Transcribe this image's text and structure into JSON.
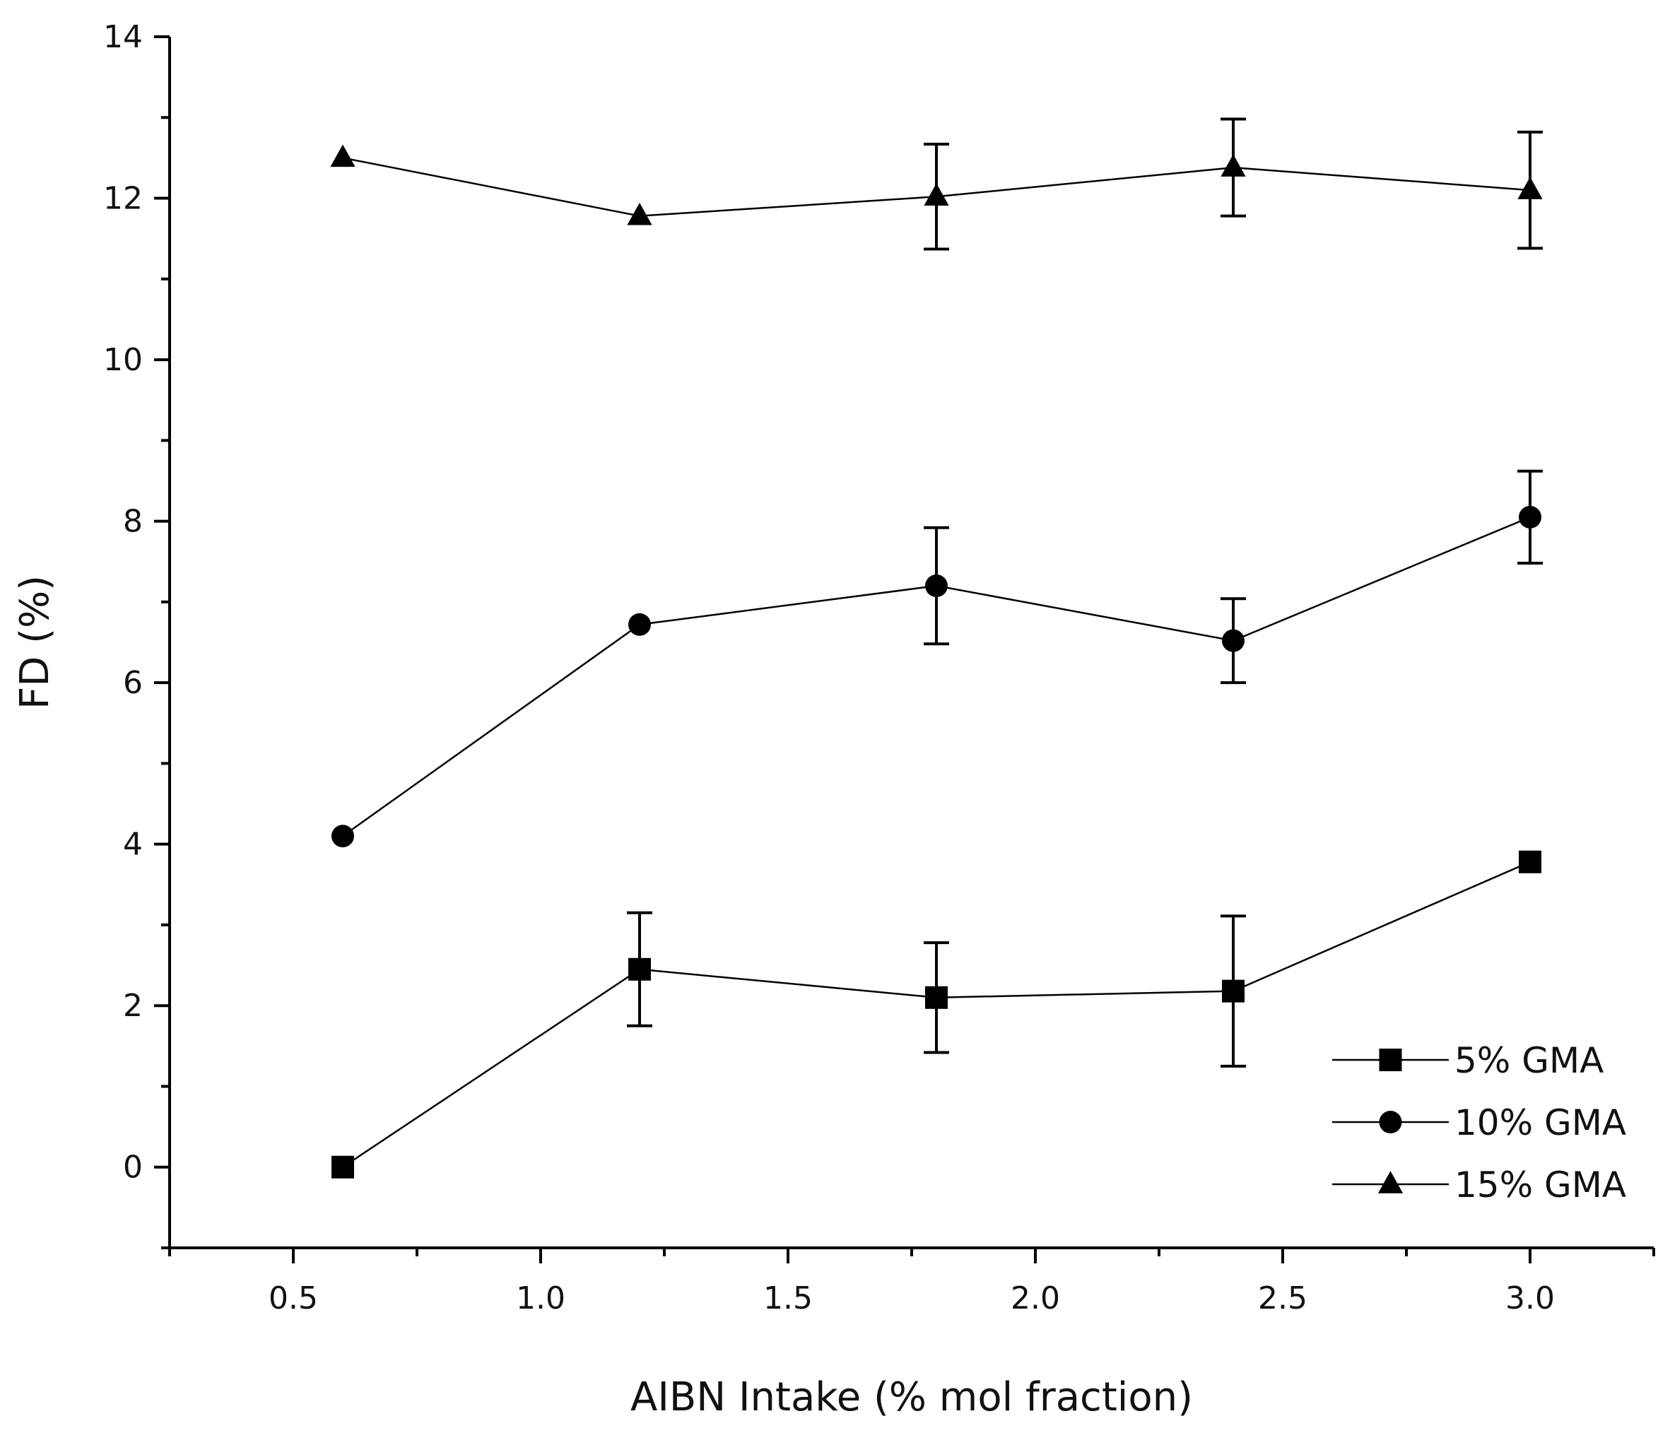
{
  "chart_data": {
    "type": "line",
    "title": "",
    "xlabel": "AIBN Intake (% mol fraction)",
    "ylabel": "FD (%)",
    "xlim": [
      0.25,
      3.25
    ],
    "ylim": [
      -1,
      14
    ],
    "x_ticks": [
      "0.5",
      "1.0",
      "1.5",
      "2.0",
      "2.5",
      "3.0"
    ],
    "x_tick_values": [
      0.5,
      1.0,
      1.5,
      2.0,
      2.5,
      3.0
    ],
    "x_minor_ticks": [
      0.25,
      0.75,
      1.25,
      1.75,
      2.25,
      2.75,
      3.25
    ],
    "y_ticks": [
      "0",
      "2",
      "4",
      "6",
      "8",
      "10",
      "12",
      "14"
    ],
    "y_tick_values": [
      0,
      2,
      4,
      6,
      8,
      10,
      12,
      14
    ],
    "y_minor_ticks": [
      -1,
      1,
      3,
      5,
      7,
      9,
      11,
      13
    ],
    "grid": false,
    "legend_position": "bottom-right",
    "x": [
      0.6,
      1.2,
      1.8,
      2.4,
      3.0
    ],
    "series": [
      {
        "name": "5% GMA",
        "marker": "square",
        "values": [
          0.0,
          2.45,
          2.1,
          2.18,
          3.78
        ],
        "errors": [
          0.0,
          0.7,
          0.68,
          0.93,
          0.0
        ]
      },
      {
        "name": "10% GMA",
        "marker": "circle",
        "values": [
          4.1,
          6.72,
          7.2,
          6.52,
          8.05
        ],
        "errors": [
          0.0,
          0.0,
          0.72,
          0.52,
          0.57
        ]
      },
      {
        "name": "15% GMA",
        "marker": "triangle",
        "values": [
          12.5,
          11.78,
          12.02,
          12.38,
          12.1
        ],
        "errors": [
          0.0,
          0.0,
          0.65,
          0.6,
          0.72
        ]
      }
    ],
    "colors": {
      "ink": "#000000",
      "background": "#ffffff"
    }
  }
}
